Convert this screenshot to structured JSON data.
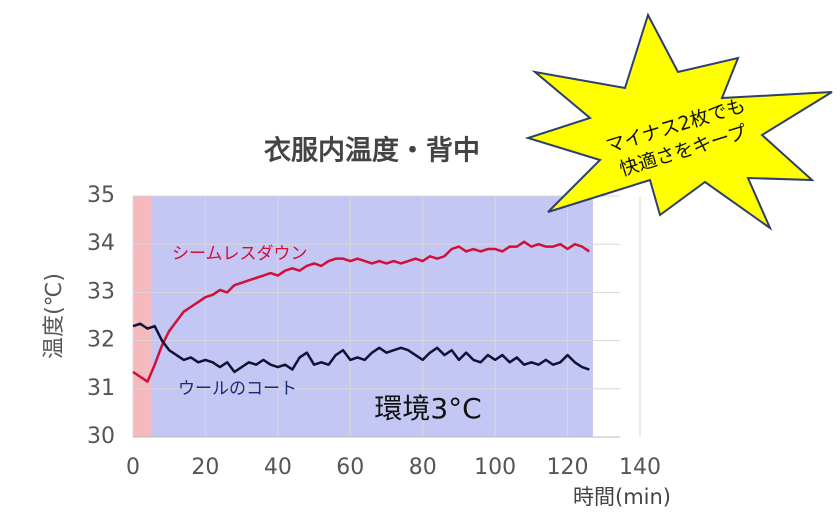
{
  "chart_data": {
    "type": "line",
    "title": "衣服内温度・背中",
    "y_label": "温度(℃)",
    "x_label": "時間(min)",
    "annotation": "環境3°C",
    "callout": [
      "マイナス2枚でも",
      "快適さをキープ"
    ],
    "xlim": [
      0,
      140
    ],
    "xticks": [
      0,
      20,
      40,
      60,
      80,
      100,
      120,
      140
    ],
    "ylim": [
      30,
      35
    ],
    "yticks": [
      30,
      31,
      32,
      33,
      34,
      35
    ],
    "grid": true,
    "bands": [
      {
        "from": 0,
        "to": 5,
        "color": "#f6b9bd"
      },
      {
        "from": 5,
        "to": 127,
        "color": "#c4c6f4"
      }
    ],
    "x": [
      0,
      2,
      4,
      6,
      8,
      10,
      12,
      14,
      16,
      18,
      20,
      22,
      24,
      26,
      28,
      30,
      32,
      34,
      36,
      38,
      40,
      42,
      44,
      46,
      48,
      50,
      52,
      54,
      56,
      58,
      60,
      62,
      64,
      66,
      68,
      70,
      72,
      74,
      76,
      78,
      80,
      82,
      84,
      86,
      88,
      90,
      92,
      94,
      96,
      98,
      100,
      102,
      104,
      106,
      108,
      110,
      112,
      114,
      116,
      118,
      120,
      122,
      124,
      126
    ],
    "series": [
      {
        "name": "シームレスダウン",
        "color": "#d0103a",
        "values": [
          31.35,
          31.25,
          31.15,
          31.5,
          31.9,
          32.2,
          32.4,
          32.6,
          32.7,
          32.8,
          32.9,
          32.95,
          33.05,
          33.0,
          33.15,
          33.2,
          33.25,
          33.3,
          33.35,
          33.4,
          33.35,
          33.45,
          33.5,
          33.45,
          33.55,
          33.6,
          33.55,
          33.65,
          33.7,
          33.7,
          33.65,
          33.7,
          33.65,
          33.6,
          33.65,
          33.6,
          33.65,
          33.6,
          33.65,
          33.7,
          33.65,
          33.75,
          33.7,
          33.75,
          33.9,
          33.95,
          33.85,
          33.9,
          33.85,
          33.9,
          33.9,
          33.85,
          33.95,
          33.95,
          34.05,
          33.95,
          34.0,
          33.95,
          33.95,
          34.0,
          33.9,
          34.0,
          33.95,
          33.85
        ]
      },
      {
        "name": "ウールのコート",
        "color": "#111133",
        "values": [
          32.3,
          32.35,
          32.25,
          32.3,
          32.0,
          31.8,
          31.7,
          31.6,
          31.65,
          31.55,
          31.6,
          31.55,
          31.45,
          31.55,
          31.35,
          31.45,
          31.55,
          31.5,
          31.6,
          31.5,
          31.45,
          31.5,
          31.4,
          31.65,
          31.75,
          31.5,
          31.55,
          31.5,
          31.7,
          31.8,
          31.6,
          31.65,
          31.6,
          31.75,
          31.85,
          31.75,
          31.8,
          31.85,
          31.8,
          31.7,
          31.6,
          31.75,
          31.85,
          31.7,
          31.8,
          31.6,
          31.75,
          31.6,
          31.55,
          31.7,
          31.6,
          31.7,
          31.55,
          31.65,
          31.5,
          31.55,
          31.5,
          31.6,
          31.5,
          31.55,
          31.7,
          31.55,
          31.45,
          31.4
        ]
      }
    ]
  }
}
